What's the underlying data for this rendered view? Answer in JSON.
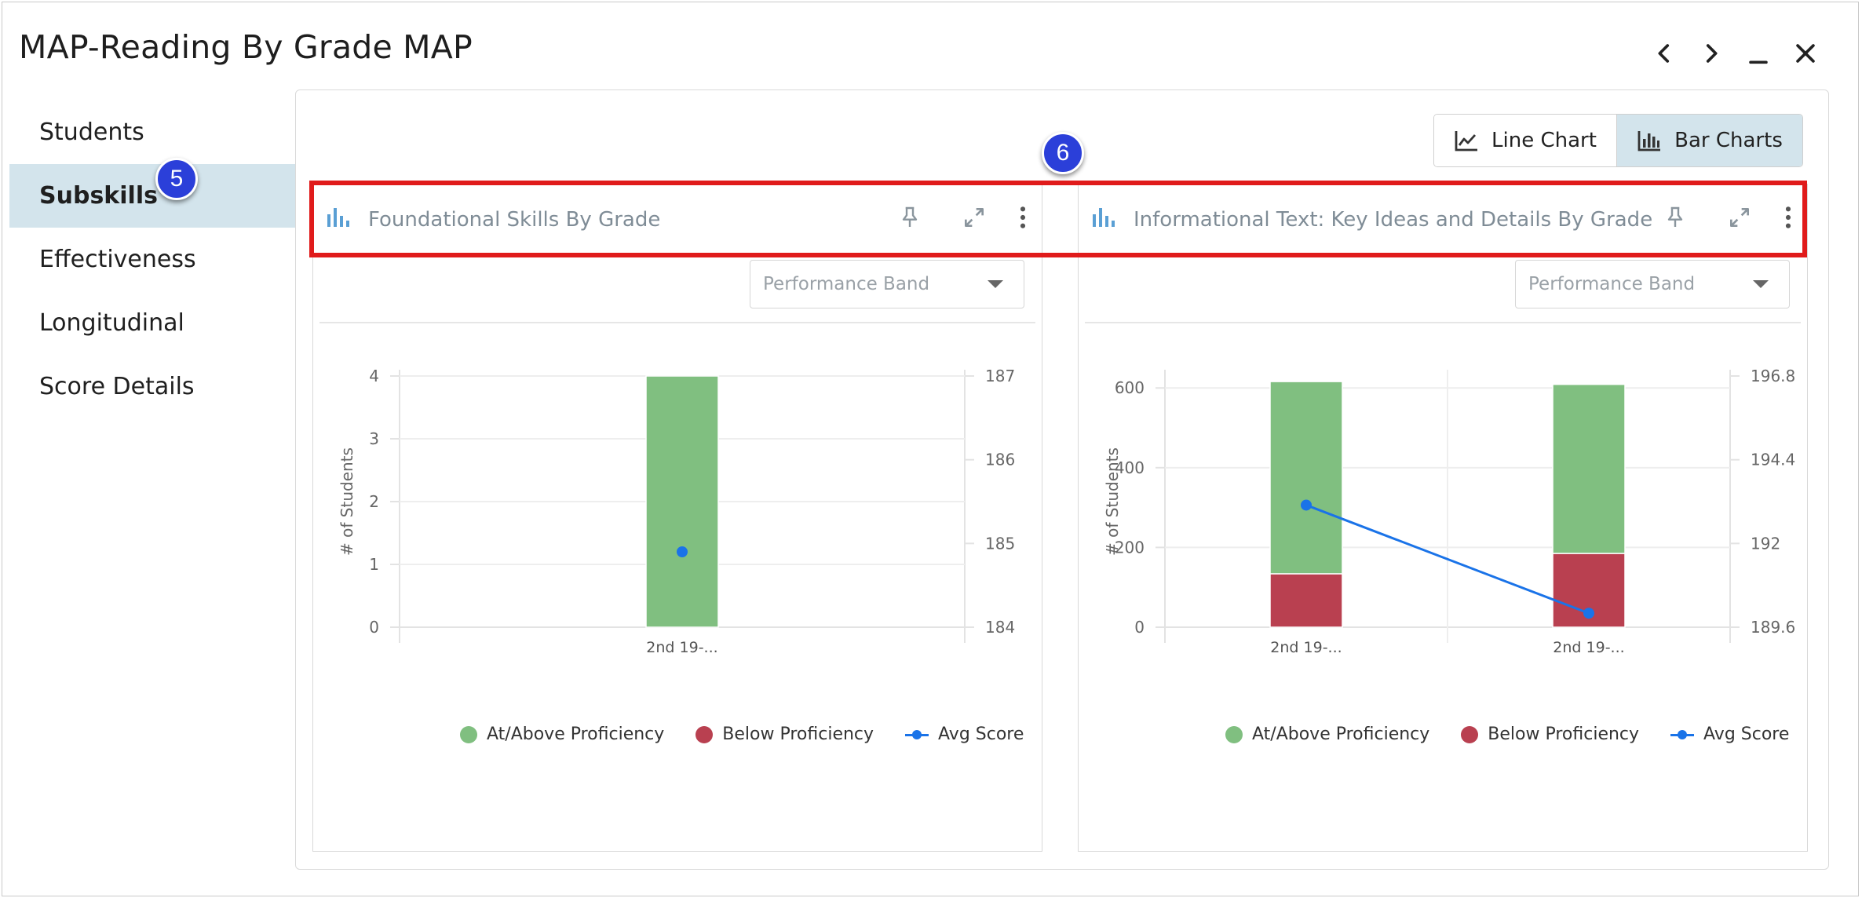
{
  "window": {
    "title": "MAP-Reading By Grade MAP"
  },
  "sidebar": {
    "items": [
      {
        "label": "Students",
        "active": false
      },
      {
        "label": "Subskills",
        "active": true
      },
      {
        "label": "Effectiveness",
        "active": false
      },
      {
        "label": "Longitudinal",
        "active": false
      },
      {
        "label": "Score Details",
        "active": false
      }
    ]
  },
  "badges": {
    "step5": "5",
    "step6": "6"
  },
  "toggle": {
    "line_label": "Line Chart",
    "bar_label": "Bar Charts",
    "active": "Bar Charts"
  },
  "colors": {
    "at_above": "#80bf80",
    "below": "#b94050",
    "avg": "#1a73e8",
    "highlight": "#e01b1b",
    "badge": "#2b3fd9",
    "active_bg": "#d3e4ec"
  },
  "panels": [
    {
      "title": "Foundational Skills By Grade",
      "select_value": "Performance Band",
      "legend": [
        "At/Above Proficiency",
        "Below Proficiency",
        "Avg Score"
      ]
    },
    {
      "title": "Informational Text: Key Ideas and Details By Grade",
      "select_value": "Performance Band",
      "legend": [
        "At/Above Proficiency",
        "Below Proficiency",
        "Avg Score"
      ]
    }
  ],
  "chart_data": [
    {
      "type": "bar",
      "stacked": true,
      "title": "Foundational Skills By Grade",
      "categories": [
        "2nd 19-..."
      ],
      "series": [
        {
          "name": "At/Above Proficiency",
          "values": [
            4
          ]
        },
        {
          "name": "Below Proficiency",
          "values": [
            0
          ]
        }
      ],
      "line_series": [
        {
          "name": "Avg Score",
          "axis": "right",
          "values": [
            184.9
          ]
        }
      ],
      "ylabel": "# of Students",
      "ylim": [
        0,
        4
      ],
      "yticks": [
        "0",
        "1",
        "2",
        "3",
        "4"
      ],
      "y2lim": [
        184,
        187
      ],
      "y2ticks": [
        "184",
        "185",
        "186",
        "187"
      ],
      "grid": true,
      "legend_position": "bottom"
    },
    {
      "type": "bar",
      "stacked": true,
      "title": "Informational Text: Key Ideas and Details By Grade",
      "categories": [
        "2nd 19-...",
        "2nd 19-..."
      ],
      "series": [
        {
          "name": "At/Above Proficiency",
          "values": [
            482,
            424
          ]
        },
        {
          "name": "Below Proficiency",
          "values": [
            134,
            185
          ]
        }
      ],
      "line_series": [
        {
          "name": "Avg Score",
          "axis": "right",
          "values": [
            193.1,
            190.0
          ]
        }
      ],
      "ylabel": "# of Students",
      "ylim": [
        0,
        630
      ],
      "yticks": [
        "0",
        "200",
        "400",
        "600"
      ],
      "y2lim": [
        189.6,
        196.8
      ],
      "y2ticks": [
        "189.6",
        "192",
        "194.4",
        "196.8"
      ],
      "grid": true,
      "legend_position": "bottom"
    }
  ]
}
